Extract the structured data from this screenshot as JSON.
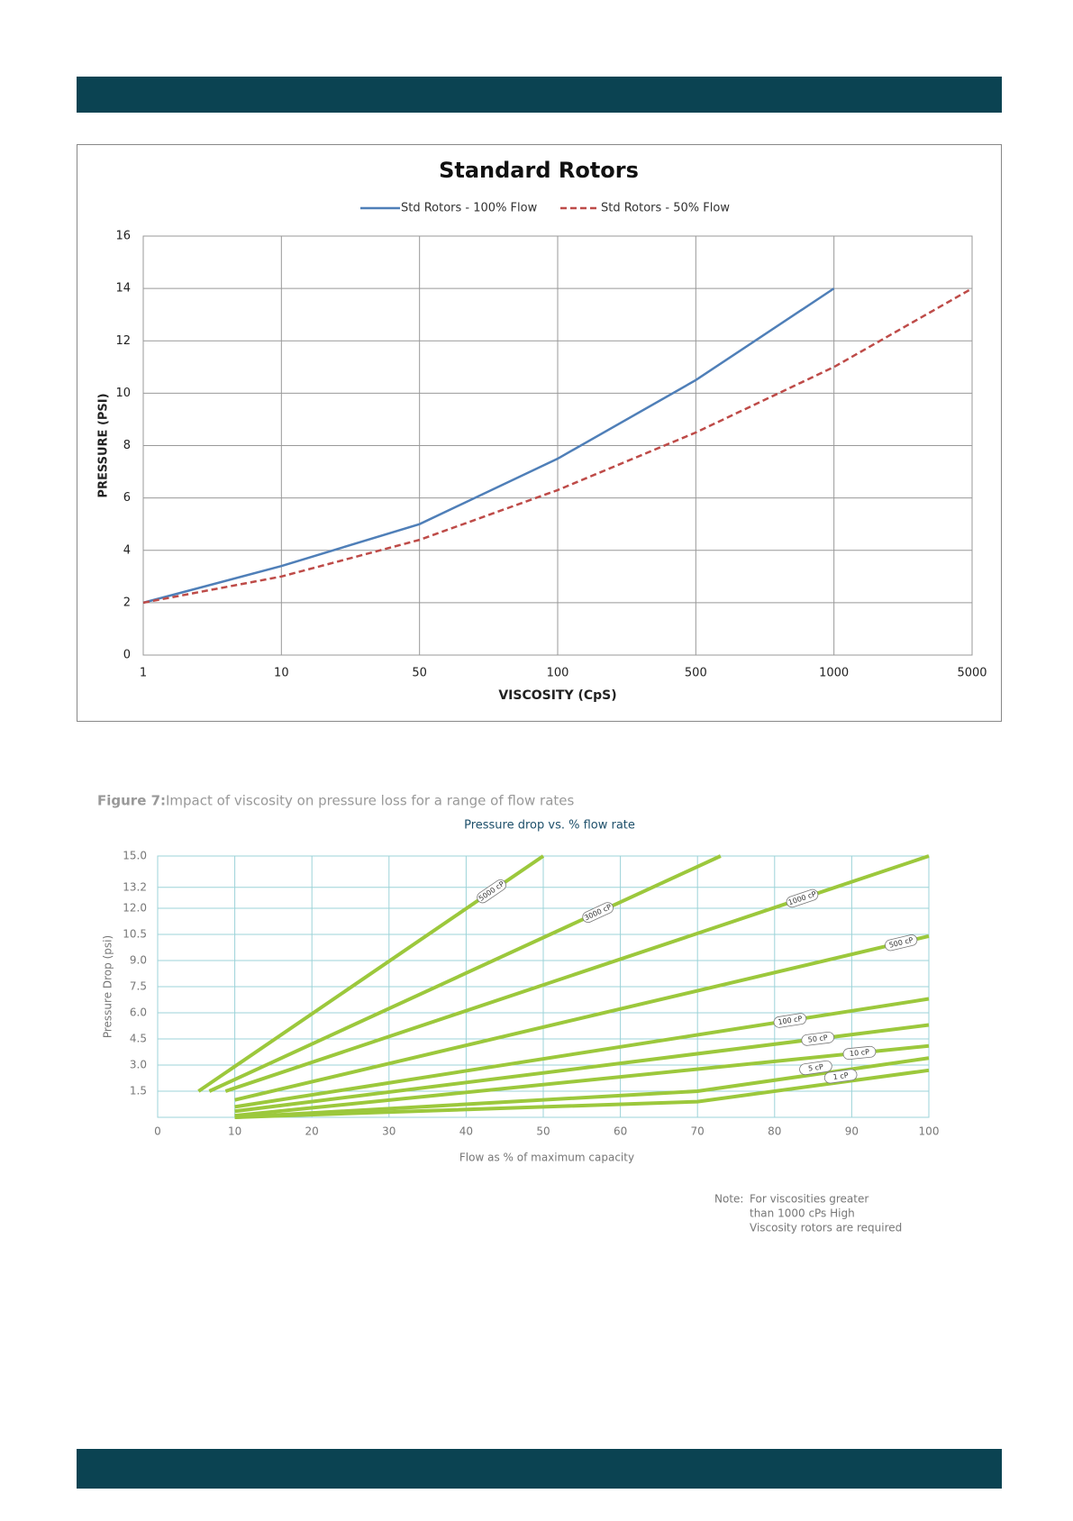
{
  "chart_data": [
    {
      "type": "line",
      "title": "Standard Rotors",
      "x_label": "VISCOSITY (CpS)",
      "y_label": "PRESSURE (PSI)",
      "categories": [
        "1",
        "10",
        "50",
        "100",
        "500",
        "1000",
        "5000"
      ],
      "series": [
        {
          "name": "Std Rotors - 100% Flow",
          "color": "#4f7fb8",
          "line_style": "solid",
          "values": [
            2,
            3.4,
            5,
            7.5,
            10.5,
            14,
            null
          ]
        },
        {
          "name": "Std Rotors - 50% Flow",
          "color": "#be4b48",
          "line_style": "dashed",
          "values": [
            2,
            3,
            4.4,
            6.3,
            8.5,
            11,
            14
          ]
        }
      ],
      "ylim": [
        0,
        16
      ],
      "yticks": [
        0,
        2,
        4,
        6,
        8,
        10,
        12,
        14,
        16
      ],
      "grid": true,
      "legend": "top"
    },
    {
      "type": "line",
      "caption_label": "Figure 7:",
      "caption": "Impact of viscosity on pressure loss for a range of flow rates",
      "title": "Pressure drop vs. % flow rate",
      "x_label": "Flow as % of maximum capacity",
      "y_label": "Pressure Drop (psi)",
      "series": [
        {
          "name": "5000 cP",
          "color": "#9cc83c",
          "x": [
            5.3,
            50
          ],
          "values": [
            1.5,
            15
          ]
        },
        {
          "name": "3000 cP",
          "color": "#9cc83c",
          "x": [
            6.7,
            73
          ],
          "values": [
            1.5,
            15
          ]
        },
        {
          "name": "1000 cP",
          "color": "#9cc83c",
          "x": [
            8.8,
            100
          ],
          "values": [
            1.5,
            15
          ]
        },
        {
          "name": "500 cP",
          "color": "#9cc83c",
          "x": [
            10,
            100
          ],
          "values": [
            1,
            10.4
          ]
        },
        {
          "name": "100 cP",
          "color": "#9cc83c",
          "x": [
            10,
            100
          ],
          "values": [
            0.6,
            6.8
          ]
        },
        {
          "name": "50 cP",
          "color": "#9cc83c",
          "x": [
            10,
            100
          ],
          "values": [
            0.35,
            5.3
          ]
        },
        {
          "name": "10 cP",
          "color": "#9cc83c",
          "x": [
            10,
            100
          ],
          "values": [
            0.1,
            4.1
          ]
        },
        {
          "name": "5 cP",
          "color": "#9cc83c",
          "x": [
            10,
            70,
            100
          ],
          "values": [
            0,
            1.5,
            3.4
          ]
        },
        {
          "name": "1 cP",
          "color": "#9cc83c",
          "x": [
            10,
            70,
            100
          ],
          "values": [
            0,
            0.9,
            2.7
          ]
        }
      ],
      "xlim": [
        0,
        100
      ],
      "xticks": [
        0,
        10,
        20,
        30,
        40,
        50,
        60,
        70,
        80,
        90,
        100
      ],
      "ylim": [
        0,
        15
      ],
      "yticks": [
        1.5,
        {
          "value": 3,
          "label": "3.0"
        },
        4.5,
        {
          "value": 6,
          "label": "6.0"
        },
        7.5,
        {
          "value": 9,
          "label": "9.0"
        },
        10.5,
        {
          "value": 12,
          "label": "12.0"
        },
        13.2,
        {
          "value": 15,
          "label": "15.0"
        }
      ],
      "grid": true,
      "note_label": "Note:",
      "note": [
        "For viscosities greater",
        "than 1000 cPs High",
        "Viscosity rotors are required"
      ]
    }
  ]
}
